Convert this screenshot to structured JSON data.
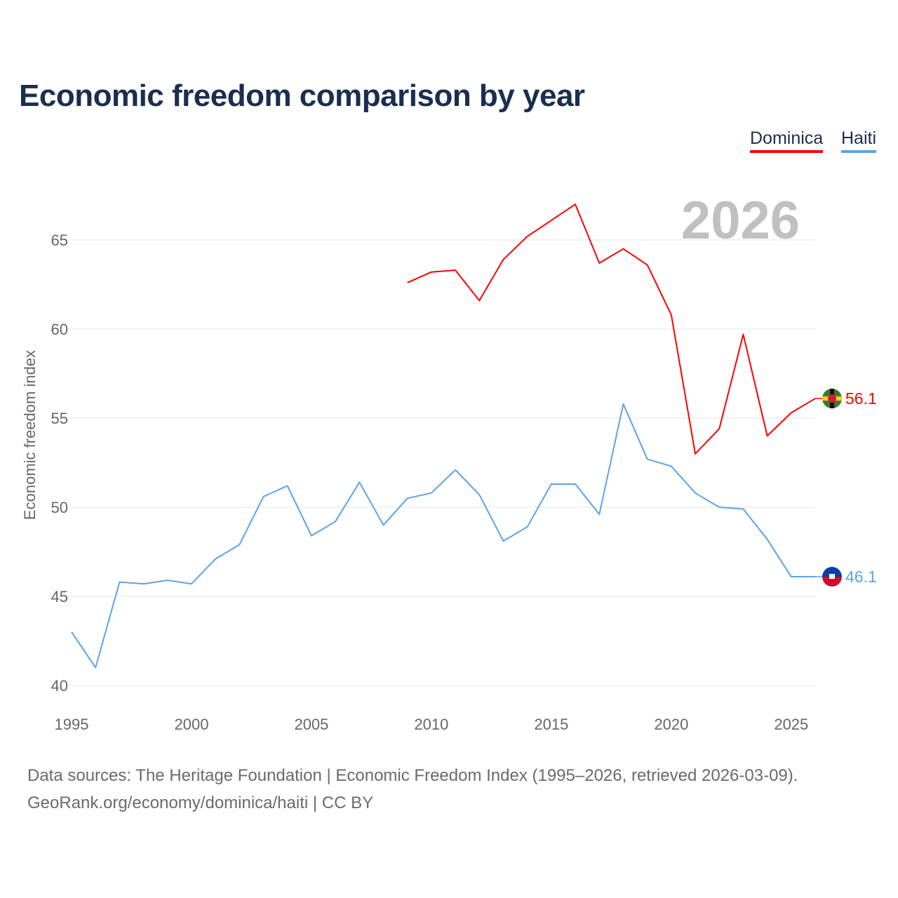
{
  "title": "Economic freedom comparison by year",
  "footer": {
    "line1": "Data sources: The Heritage Foundation | Economic Freedom Index (1995–2026, retrieved 2026-03-09).",
    "line2": "GeoRank.org/economy/dominica/haiti | CC BY"
  },
  "chart_data": {
    "type": "line",
    "title": "Economic freedom comparison by year",
    "xlabel": "",
    "ylabel": "Economic freedom index",
    "year_label": "2026",
    "xlim": [
      1995,
      2026
    ],
    "ylim": [
      40,
      67.5
    ],
    "xticks": [
      "1995",
      "2000",
      "2005",
      "2010",
      "2015",
      "2020",
      "2025"
    ],
    "yticks": [
      "40",
      "45",
      "50",
      "55",
      "60",
      "65"
    ],
    "grid": true,
    "legend_position": "top-right",
    "series": [
      {
        "name": "Dominica",
        "color": "#ff0000",
        "end_label": "56.1",
        "flag": "dominica-flag",
        "x": [
          2009,
          2010,
          2011,
          2012,
          2013,
          2014,
          2015,
          2016,
          2017,
          2018,
          2019,
          2020,
          2021,
          2022,
          2023,
          2024,
          2025,
          2026
        ],
        "values": [
          62.6,
          63.2,
          63.3,
          61.6,
          63.9,
          65.2,
          66.1,
          67.0,
          63.7,
          64.5,
          63.6,
          60.8,
          53.0,
          54.4,
          59.7,
          54.0,
          55.3,
          56.1
        ]
      },
      {
        "name": "Haiti",
        "color": "#5ba3ec",
        "end_label": "46.1",
        "flag": "haiti-flag",
        "x": [
          1995,
          1996,
          1997,
          1998,
          1999,
          2000,
          2001,
          2002,
          2003,
          2004,
          2005,
          2006,
          2007,
          2008,
          2009,
          2010,
          2011,
          2012,
          2013,
          2014,
          2015,
          2016,
          2017,
          2018,
          2019,
          2020,
          2021,
          2022,
          2023,
          2024,
          2025,
          2026
        ],
        "values": [
          43.0,
          41.0,
          45.8,
          45.7,
          45.9,
          45.7,
          47.1,
          47.9,
          50.6,
          51.2,
          48.4,
          49.2,
          51.4,
          49.0,
          50.5,
          50.8,
          52.1,
          50.7,
          48.1,
          48.9,
          51.3,
          51.3,
          49.6,
          55.8,
          52.7,
          52.3,
          50.8,
          50.0,
          49.9,
          48.2,
          46.1,
          46.1
        ]
      }
    ]
  }
}
